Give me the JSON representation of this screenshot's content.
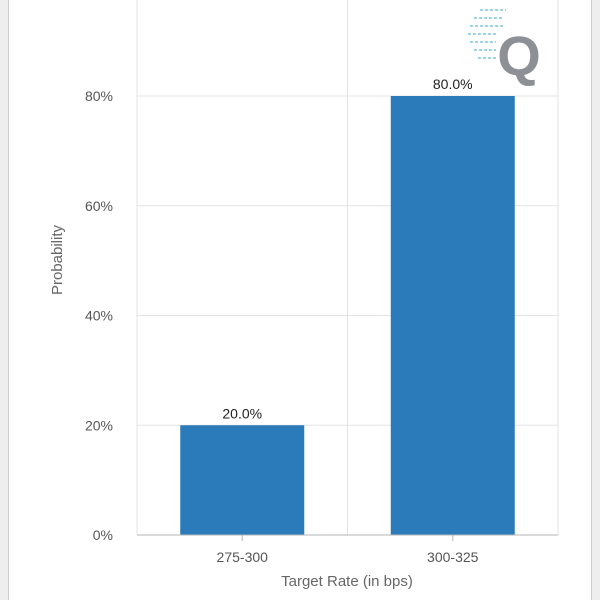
{
  "chart_data": {
    "type": "bar",
    "categories": [
      "275-300",
      "300-325"
    ],
    "values": [
      20.0,
      80.0
    ],
    "data_labels": [
      "20.0%",
      "80.0%"
    ],
    "title": "",
    "xlabel": "Target Rate (in bps)",
    "ylabel": "Probability",
    "ylim": [
      0,
      80
    ],
    "yticks": [
      0,
      20,
      40,
      60,
      80
    ],
    "ytick_labels": [
      "0%",
      "20%",
      "40%",
      "60%",
      "80%"
    ],
    "grid": true,
    "bar_color": "#2b7bba"
  },
  "watermark": {
    "letter": "Q",
    "color": "#8d9196",
    "accent": "#9fd3ea"
  }
}
